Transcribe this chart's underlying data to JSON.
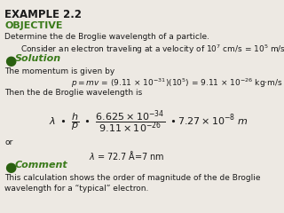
{
  "title": "EXAMPLE 2.2",
  "objective_label": "OBJECTIVE",
  "line1": "Determine the de Broglie wavelength of a particle.",
  "line2": "Consider an electron traveling at a velocity of 10$^7$ cm/s = 10$^5$ m/s.",
  "solution_label": "Solution",
  "sol_line1": "The momentum is given by",
  "sol_line3": "Then the de Broglie wavelength is",
  "or_text": "or",
  "lambda_result": "+ = 72.7 Å=7 nm",
  "comment_label": "Comment",
  "comment_line1": "This calculation shows the order of magnitude of the de Broglie",
  "comment_line2": "wavelength for a “typical” electron.",
  "title_color": "#1a1a1a",
  "green_color": "#3a7a1a",
  "body_color": "#1a1a1a",
  "bg_color": "#ede9e3",
  "bullet_color": "#2a6010",
  "title_fontsize": 8.5,
  "obj_fontsize": 8.0,
  "sol_fontsize": 8.0,
  "body_fontsize": 6.5,
  "small_fontsize": 6.0,
  "formula_fontsize": 7.5
}
